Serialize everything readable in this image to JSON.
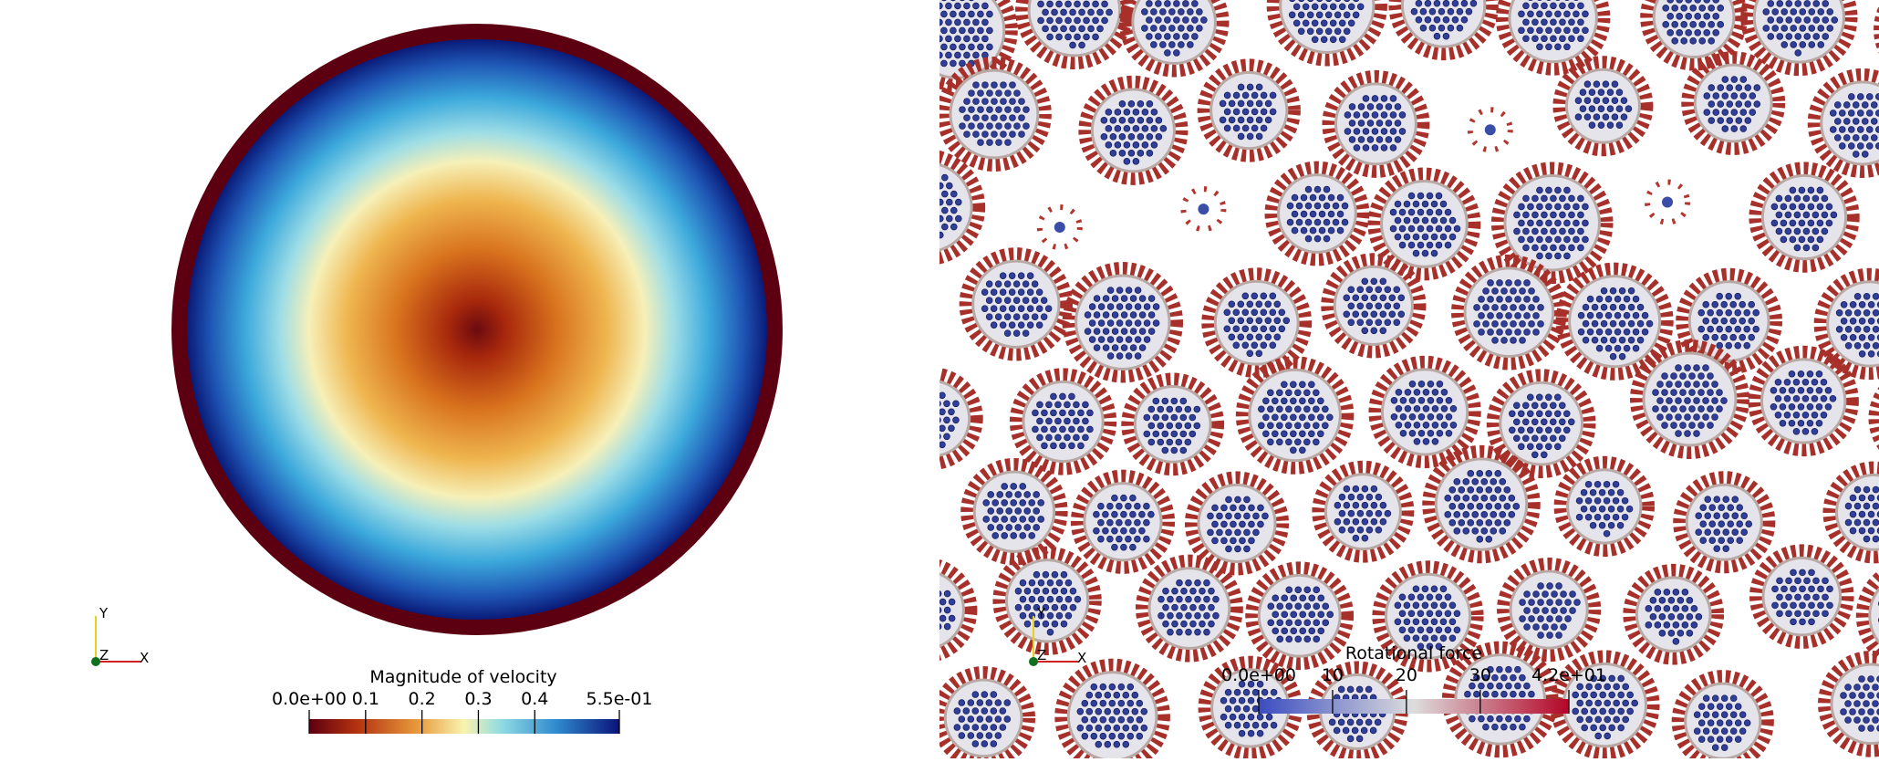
{
  "left_panel": {
    "colorbar": {
      "title": "Magnitude of velocity",
      "ticks": [
        {
          "value": 0,
          "label": "0.0e+00"
        },
        0.1,
        0.2,
        0.3,
        0.4,
        {
          "value": 0.55,
          "label": "5.5e-01"
        }
      ]
    },
    "axes": {
      "x": "X",
      "y": "Y",
      "z": "Z"
    }
  },
  "right_panel": {
    "colorbar": {
      "title": "Rotational force",
      "ticks": [
        {
          "value": 0,
          "label": "0.0e+00"
        },
        10,
        20,
        30,
        {
          "value": 42,
          "label": "4.2e+01"
        }
      ]
    },
    "axes": {
      "x": "X",
      "y": "Y",
      "z": "Z"
    }
  }
}
